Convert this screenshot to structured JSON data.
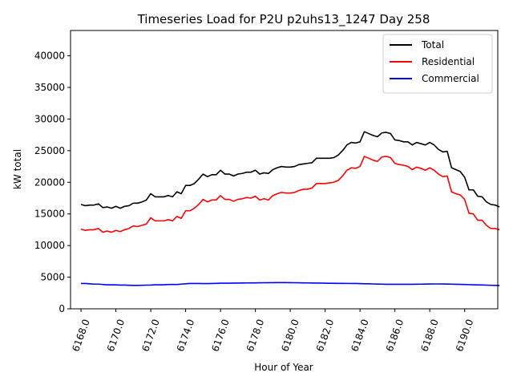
{
  "chart_data": {
    "type": "line",
    "title": "Timeseries Load for P2U p2uhs13_1247  Day 258",
    "xlabel": "Hour of Year",
    "ylabel": "kW total",
    "xlim": [
      6167.4,
      6191.9
    ],
    "ylim": [
      0,
      44000
    ],
    "x_ticks": [
      6168,
      6170,
      6172,
      6174,
      6176,
      6178,
      6180,
      6182,
      6184,
      6186,
      6188,
      6190
    ],
    "x_tick_labels": [
      "6168.0",
      "6170.0",
      "6172.0",
      "6174.0",
      "6176.0",
      "6178.0",
      "6180.0",
      "6182.0",
      "6184.0",
      "6186.0",
      "6188.0",
      "6190.0"
    ],
    "y_ticks": [
      0,
      5000,
      10000,
      15000,
      20000,
      25000,
      30000,
      35000,
      40000
    ],
    "y_tick_labels": [
      "0",
      "5000",
      "10000",
      "15000",
      "20000",
      "25000",
      "30000",
      "35000",
      "40000"
    ],
    "legend_position": "top-right",
    "x_start": 6168.0,
    "x_step": 0.25,
    "series": [
      {
        "name": "Total",
        "color": "#000000",
        "values": [
          16500,
          16300,
          16400,
          16400,
          16600,
          16000,
          16100,
          15900,
          16200,
          15900,
          16200,
          16300,
          16700,
          16700,
          16900,
          17200,
          18200,
          17700,
          17700,
          17700,
          17900,
          17700,
          18500,
          18200,
          19500,
          19500,
          19800,
          20500,
          21300,
          20900,
          21200,
          21200,
          21900,
          21300,
          21300,
          21000,
          21300,
          21400,
          21600,
          21600,
          21900,
          21300,
          21500,
          21400,
          22000,
          22300,
          22500,
          22400,
          22400,
          22500,
          22800,
          22900,
          23000,
          23100,
          23800,
          23800,
          23800,
          23800,
          23900,
          24300,
          25000,
          25900,
          26300,
          26200,
          26400,
          28000,
          27700,
          27400,
          27200,
          27800,
          27900,
          27700,
          26700,
          26600,
          26400,
          26400,
          25900,
          26300,
          26100,
          25900,
          26300,
          25900,
          25200,
          24800,
          24900,
          22300,
          22000,
          21700,
          20800,
          18800,
          18800,
          17800,
          17700,
          16900,
          16500,
          16400,
          16100
        ]
      },
      {
        "name": "Residential",
        "color": "#ff0000",
        "values": [
          12600,
          12400,
          12500,
          12500,
          12700,
          12100,
          12300,
          12100,
          12400,
          12200,
          12500,
          12700,
          13100,
          13000,
          13200,
          13400,
          14400,
          13900,
          13900,
          13900,
          14100,
          13900,
          14600,
          14300,
          15500,
          15500,
          15900,
          16500,
          17300,
          16900,
          17200,
          17200,
          17900,
          17300,
          17300,
          17000,
          17300,
          17400,
          17600,
          17500,
          17800,
          17200,
          17400,
          17200,
          17900,
          18200,
          18400,
          18300,
          18300,
          18400,
          18700,
          18900,
          18900,
          19100,
          19800,
          19800,
          19800,
          19900,
          20000,
          20300,
          21000,
          21900,
          22300,
          22200,
          22500,
          24100,
          23800,
          23500,
          23300,
          24000,
          24100,
          23900,
          23000,
          22800,
          22700,
          22500,
          22000,
          22400,
          22200,
          21900,
          22300,
          21900,
          21300,
          20900,
          21000,
          18500,
          18200,
          18000,
          17300,
          15100,
          15000,
          14000,
          14000,
          13200,
          12700,
          12700,
          12500
        ]
      },
      {
        "name": "Commercial",
        "color": "#0000ff",
        "values": [
          4000,
          4000,
          3950,
          3900,
          3900,
          3850,
          3800,
          3800,
          3780,
          3750,
          3750,
          3720,
          3700,
          3700,
          3720,
          3740,
          3750,
          3800,
          3800,
          3800,
          3850,
          3850,
          3850,
          3900,
          3950,
          4000,
          4000,
          4000,
          3980,
          3980,
          4000,
          4020,
          4050,
          4050,
          4050,
          4060,
          4060,
          4080,
          4090,
          4100,
          4100,
          4110,
          4120,
          4130,
          4130,
          4140,
          4140,
          4140,
          4130,
          4120,
          4110,
          4100,
          4090,
          4080,
          4070,
          4060,
          4050,
          4040,
          4030,
          4020,
          4020,
          4010,
          4000,
          4000,
          3980,
          3960,
          3950,
          3930,
          3910,
          3900,
          3880,
          3880,
          3870,
          3870,
          3870,
          3880,
          3880,
          3890,
          3900,
          3910,
          3920,
          3930,
          3930,
          3920,
          3910,
          3900,
          3880,
          3860,
          3840,
          3820,
          3800,
          3780,
          3760,
          3740,
          3720,
          3700,
          3680
        ]
      }
    ]
  }
}
